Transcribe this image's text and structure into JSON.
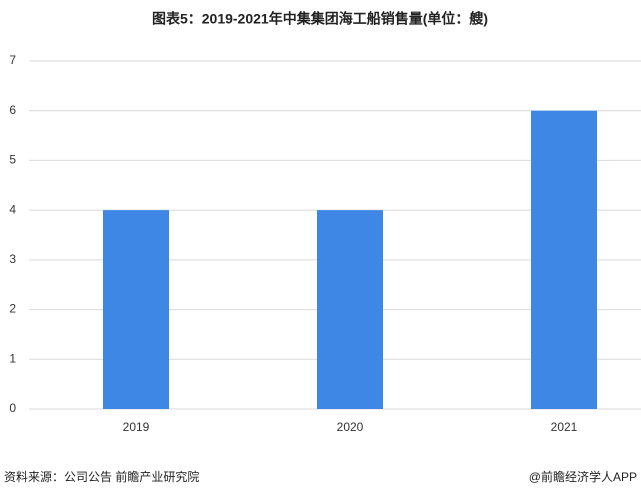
{
  "chart_data": {
    "type": "bar",
    "title": "图表5：2019-2021年中集集团海工船销售量(单位：艘)",
    "categories": [
      "2019",
      "2020",
      "2021"
    ],
    "values": [
      4,
      4,
      6
    ],
    "color": "#3f87e4",
    "ylim": [
      0,
      7
    ],
    "yticks": [
      0,
      1,
      2,
      3,
      4,
      5,
      6,
      7
    ],
    "grid": true,
    "source": "资料来源：公司公告 前瞻产业研究院",
    "credit": "@前瞻经济学人APP"
  }
}
